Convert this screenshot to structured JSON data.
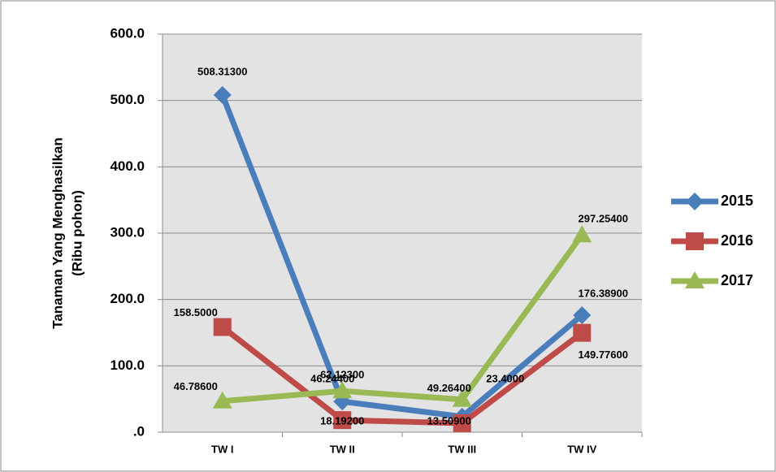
{
  "chart_data": {
    "type": "line",
    "y_label": [
      "Tanaman Yang Menghasilkan",
      "(Ribu pohon)"
    ],
    "categories": [
      "TW I",
      "TW II",
      "TW III",
      "TW IV"
    ],
    "series": [
      {
        "name": "2015",
        "color": "#4a7ebb",
        "marker": "diamond",
        "values": [
          508.313,
          46.244,
          23.4,
          176.389
        ],
        "value_labels": [
          "508.31300",
          "46.24400",
          "23.4000",
          "176.38900"
        ]
      },
      {
        "name": "2016",
        "color": "#be4b48",
        "marker": "square",
        "values": [
          158.5,
          18.192,
          13.509,
          149.776
        ],
        "value_labels": [
          "158.5000",
          "18.19200",
          "13.50900",
          "149.77600"
        ]
      },
      {
        "name": "2017",
        "color": "#98b954",
        "marker": "triangle",
        "values": [
          46.786,
          62.123,
          49.264,
          297.254
        ],
        "value_labels": [
          "46.78600",
          "62.12300",
          "49.26400",
          "297.25400"
        ]
      }
    ],
    "ylim": [
      0,
      600
    ],
    "yticks": [
      {
        "value": 0,
        "label": ".0"
      },
      {
        "value": 100,
        "label": "100.0"
      },
      {
        "value": 200,
        "label": "200.0"
      },
      {
        "value": 300,
        "label": "300.0"
      },
      {
        "value": 400,
        "label": "400.0"
      },
      {
        "value": 500,
        "label": "500.0"
      },
      {
        "value": 600,
        "label": "600.0"
      }
    ],
    "grid": true,
    "legend": "right"
  }
}
